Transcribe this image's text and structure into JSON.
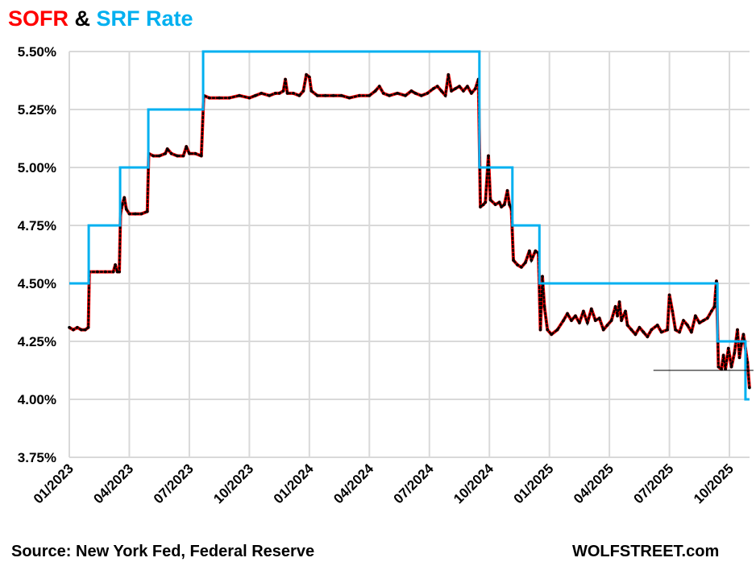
{
  "chart_data": {
    "type": "line",
    "title_parts": [
      {
        "text": "SOFR",
        "color": "#ff0000"
      },
      {
        "text": " & ",
        "color": "#000000"
      },
      {
        "text": "SRF Rate",
        "color": "#00b0f0"
      }
    ],
    "xlabel": "",
    "ylabel": "",
    "x_unit": "months since 01/2023",
    "xlim": [
      0,
      34.2
    ],
    "ylim": [
      3.75,
      5.5
    ],
    "grid": true,
    "x_ticks": [
      {
        "value": 0,
        "label": "01/2023"
      },
      {
        "value": 3,
        "label": "04/2023"
      },
      {
        "value": 6,
        "label": "07/2023"
      },
      {
        "value": 9,
        "label": "10/2023"
      },
      {
        "value": 12,
        "label": "01/2024"
      },
      {
        "value": 15,
        "label": "04/2024"
      },
      {
        "value": 18,
        "label": "07/2024"
      },
      {
        "value": 21,
        "label": "10/2024"
      },
      {
        "value": 24,
        "label": "01/2025"
      },
      {
        "value": 27,
        "label": "04/2025"
      },
      {
        "value": 30,
        "label": "07/2025"
      },
      {
        "value": 33,
        "label": "10/2025"
      }
    ],
    "y_ticks": [
      {
        "value": 5.5,
        "label": "5.50%"
      },
      {
        "value": 5.25,
        "label": "5.25%"
      },
      {
        "value": 5.0,
        "label": "5.00%"
      },
      {
        "value": 4.75,
        "label": "4.75%"
      },
      {
        "value": 4.5,
        "label": "4.50%"
      },
      {
        "value": 4.25,
        "label": "4.25%"
      },
      {
        "value": 4.0,
        "label": "4.00%"
      },
      {
        "value": 3.75,
        "label": "3.75%"
      }
    ],
    "series": [
      {
        "name": "SRF Rate",
        "style": "step",
        "color": "#00b0f0",
        "points": [
          [
            0,
            4.5
          ],
          [
            0.97,
            4.75
          ],
          [
            2.54,
            5.0
          ],
          [
            3.95,
            5.25
          ],
          [
            6.69,
            5.5
          ],
          [
            20.5,
            5.0
          ],
          [
            22.15,
            4.75
          ],
          [
            23.5,
            4.5
          ],
          [
            32.4,
            4.25
          ],
          [
            33.8,
            4.0
          ],
          [
            34.0,
            4.0
          ]
        ]
      },
      {
        "name": "SOFR",
        "style": "line",
        "color": "#ff0000",
        "marker_color": "#000000",
        "points": [
          [
            0,
            4.31
          ],
          [
            0.2,
            4.3
          ],
          [
            0.4,
            4.31
          ],
          [
            0.6,
            4.3
          ],
          [
            0.8,
            4.3
          ],
          [
            0.95,
            4.31
          ],
          [
            1.0,
            4.55
          ],
          [
            1.4,
            4.55
          ],
          [
            1.8,
            4.55
          ],
          [
            2.2,
            4.55
          ],
          [
            2.3,
            4.58
          ],
          [
            2.4,
            4.55
          ],
          [
            2.5,
            4.55
          ],
          [
            2.56,
            4.8
          ],
          [
            2.65,
            4.84
          ],
          [
            2.75,
            4.87
          ],
          [
            2.85,
            4.82
          ],
          [
            3.0,
            4.8
          ],
          [
            3.3,
            4.8
          ],
          [
            3.6,
            4.8
          ],
          [
            3.9,
            4.81
          ],
          [
            3.97,
            5.06
          ],
          [
            4.2,
            5.05
          ],
          [
            4.5,
            5.05
          ],
          [
            4.8,
            5.06
          ],
          [
            4.9,
            5.08
          ],
          [
            5.1,
            5.06
          ],
          [
            5.4,
            5.05
          ],
          [
            5.7,
            5.05
          ],
          [
            5.85,
            5.09
          ],
          [
            6.0,
            5.06
          ],
          [
            6.3,
            5.06
          ],
          [
            6.6,
            5.05
          ],
          [
            6.72,
            5.31
          ],
          [
            7.0,
            5.3
          ],
          [
            7.5,
            5.3
          ],
          [
            8.0,
            5.3
          ],
          [
            8.5,
            5.31
          ],
          [
            9.0,
            5.3
          ],
          [
            9.3,
            5.31
          ],
          [
            9.6,
            5.32
          ],
          [
            10.0,
            5.31
          ],
          [
            10.3,
            5.32
          ],
          [
            10.5,
            5.32
          ],
          [
            10.7,
            5.33
          ],
          [
            10.8,
            5.38
          ],
          [
            10.9,
            5.32
          ],
          [
            11.2,
            5.32
          ],
          [
            11.5,
            5.31
          ],
          [
            11.7,
            5.33
          ],
          [
            11.85,
            5.4
          ],
          [
            12.0,
            5.39
          ],
          [
            12.1,
            5.33
          ],
          [
            12.4,
            5.31
          ],
          [
            12.8,
            5.31
          ],
          [
            13.2,
            5.31
          ],
          [
            13.6,
            5.31
          ],
          [
            14.0,
            5.3
          ],
          [
            14.5,
            5.31
          ],
          [
            15.0,
            5.31
          ],
          [
            15.3,
            5.33
          ],
          [
            15.5,
            5.35
          ],
          [
            15.7,
            5.32
          ],
          [
            16.0,
            5.31
          ],
          [
            16.4,
            5.32
          ],
          [
            16.8,
            5.31
          ],
          [
            17.1,
            5.33
          ],
          [
            17.3,
            5.32
          ],
          [
            17.6,
            5.31
          ],
          [
            17.9,
            5.32
          ],
          [
            18.2,
            5.34
          ],
          [
            18.4,
            5.35
          ],
          [
            18.6,
            5.33
          ],
          [
            18.8,
            5.31
          ],
          [
            18.95,
            5.4
          ],
          [
            19.1,
            5.33
          ],
          [
            19.3,
            5.34
          ],
          [
            19.5,
            5.35
          ],
          [
            19.7,
            5.33
          ],
          [
            19.9,
            5.35
          ],
          [
            20.1,
            5.32
          ],
          [
            20.3,
            5.34
          ],
          [
            20.45,
            5.38
          ],
          [
            20.55,
            4.83
          ],
          [
            20.7,
            4.84
          ],
          [
            20.8,
            4.85
          ],
          [
            20.95,
            5.05
          ],
          [
            21.05,
            4.86
          ],
          [
            21.3,
            4.84
          ],
          [
            21.5,
            4.85
          ],
          [
            21.6,
            4.83
          ],
          [
            21.75,
            4.84
          ],
          [
            21.9,
            4.9
          ],
          [
            22.0,
            4.84
          ],
          [
            22.1,
            4.82
          ],
          [
            22.2,
            4.6
          ],
          [
            22.4,
            4.58
          ],
          [
            22.6,
            4.57
          ],
          [
            22.8,
            4.59
          ],
          [
            23.0,
            4.64
          ],
          [
            23.1,
            4.6
          ],
          [
            23.3,
            4.64
          ],
          [
            23.45,
            4.63
          ],
          [
            23.55,
            4.3
          ],
          [
            23.65,
            4.53
          ],
          [
            23.75,
            4.4
          ],
          [
            23.9,
            4.3
          ],
          [
            24.1,
            4.28
          ],
          [
            24.4,
            4.3
          ],
          [
            24.7,
            4.34
          ],
          [
            24.9,
            4.37
          ],
          [
            25.1,
            4.34
          ],
          [
            25.3,
            4.36
          ],
          [
            25.5,
            4.33
          ],
          [
            25.7,
            4.38
          ],
          [
            25.9,
            4.33
          ],
          [
            26.1,
            4.39
          ],
          [
            26.3,
            4.34
          ],
          [
            26.5,
            4.35
          ],
          [
            26.7,
            4.3
          ],
          [
            26.9,
            4.32
          ],
          [
            27.1,
            4.34
          ],
          [
            27.3,
            4.4
          ],
          [
            27.4,
            4.36
          ],
          [
            27.5,
            4.42
          ],
          [
            27.6,
            4.34
          ],
          [
            27.8,
            4.38
          ],
          [
            27.9,
            4.32
          ],
          [
            28.1,
            4.3
          ],
          [
            28.3,
            4.28
          ],
          [
            28.5,
            4.31
          ],
          [
            28.7,
            4.29
          ],
          [
            28.9,
            4.27
          ],
          [
            29.1,
            4.3
          ],
          [
            29.4,
            4.32
          ],
          [
            29.6,
            4.29
          ],
          [
            29.9,
            4.3
          ],
          [
            30.0,
            4.45
          ],
          [
            30.15,
            4.38
          ],
          [
            30.3,
            4.3
          ],
          [
            30.5,
            4.29
          ],
          [
            30.7,
            4.34
          ],
          [
            30.9,
            4.32
          ],
          [
            31.1,
            4.29
          ],
          [
            31.3,
            4.36
          ],
          [
            31.5,
            4.33
          ],
          [
            31.7,
            4.34
          ],
          [
            31.9,
            4.35
          ],
          [
            32.1,
            4.38
          ],
          [
            32.25,
            4.4
          ],
          [
            32.35,
            4.51
          ],
          [
            32.45,
            4.14
          ],
          [
            32.6,
            4.13
          ],
          [
            32.7,
            4.19
          ],
          [
            32.8,
            4.13
          ],
          [
            32.95,
            4.22
          ],
          [
            33.1,
            4.14
          ],
          [
            33.25,
            4.2
          ],
          [
            33.4,
            4.3
          ],
          [
            33.5,
            4.18
          ],
          [
            33.6,
            4.24
          ],
          [
            33.7,
            4.28
          ],
          [
            33.8,
            4.22
          ],
          [
            33.9,
            4.16
          ],
          [
            34.0,
            4.05
          ]
        ]
      }
    ],
    "annotation_line": {
      "y": 4.125,
      "x_from": 29.2,
      "x_to": 34.2
    }
  },
  "footer": {
    "source": "Source: New York Fed, Federal Reserve",
    "brand": "WOLFSTREET.com"
  }
}
